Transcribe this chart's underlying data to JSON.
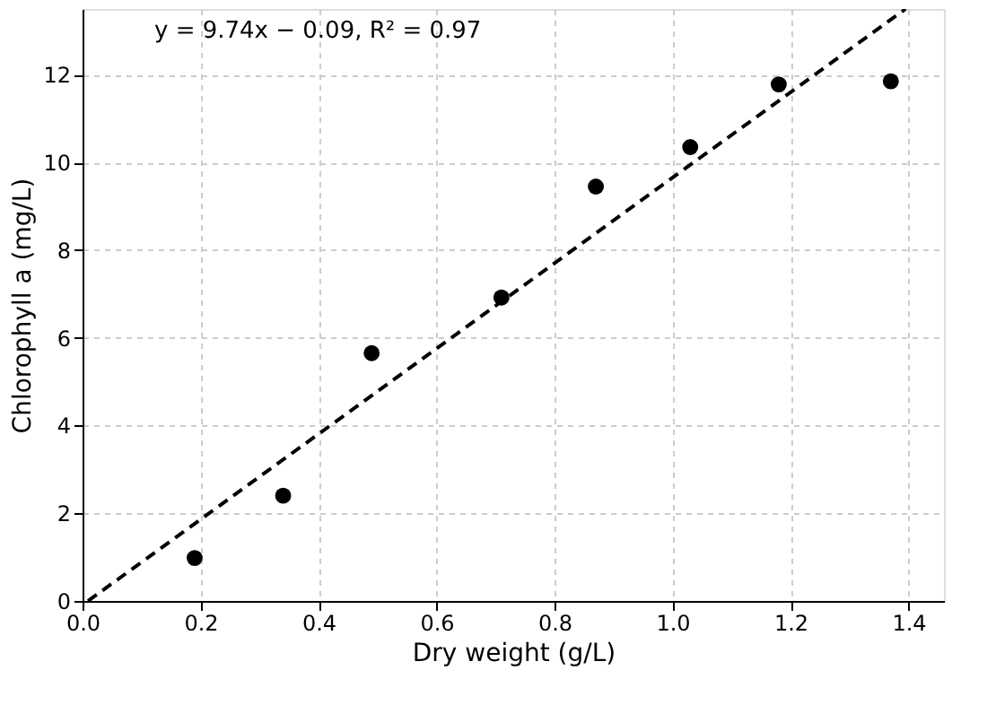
{
  "chart_data": {
    "type": "scatter",
    "xlabel": "Dry weight (g/L)",
    "ylabel": "Chlorophyll a (mg/L)",
    "x": [
      0.19,
      0.34,
      0.49,
      0.71,
      0.87,
      1.03,
      1.18,
      1.37
    ],
    "series": [
      {
        "color": "#000000",
        "marker": "circle",
        "values": [
          0.98,
          2.4,
          5.65,
          6.92,
          9.45,
          10.35,
          11.78,
          11.85
        ]
      },
      {
        "type": "line",
        "color": "#000000",
        "line_style": "dashed",
        "marker": "none",
        "x": [
          0.0092,
          1.395
        ],
        "values": [
          0,
          13.5
        ]
      }
    ],
    "annotations": [
      "y = 9.74x − 0.09, R² = 0.97"
    ],
    "xlim": [
      0,
      1.46
    ],
    "ylim": [
      0,
      13.5
    ],
    "xticks": [
      {
        "value": 0,
        "label": "0.0"
      },
      0.2,
      0.4,
      0.6,
      0.8,
      {
        "value": 1,
        "label": "1.0"
      },
      1.2,
      1.4
    ],
    "yticks": [
      0,
      2,
      4,
      6,
      8,
      10,
      12
    ],
    "grid": true
  }
}
